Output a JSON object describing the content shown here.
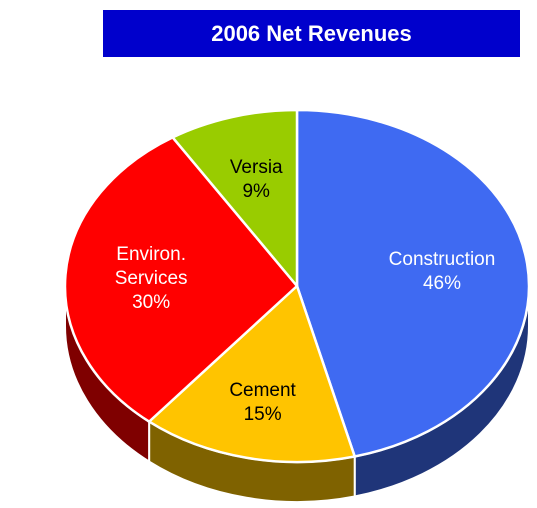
{
  "chart_data": {
    "type": "pie",
    "title": "2006 Net Revenues",
    "categories": [
      "Construction",
      "Cement",
      "Environ. Services",
      "Versia"
    ],
    "values": [
      46,
      15,
      30,
      9
    ],
    "value_labels": [
      "46%",
      "15%",
      "30%",
      "9%"
    ],
    "colors": [
      "#3f6af2",
      "#ffc400",
      "#ff0000",
      "#99cc00"
    ]
  }
}
